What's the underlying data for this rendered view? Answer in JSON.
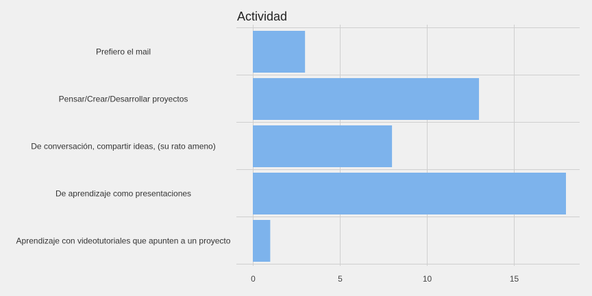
{
  "chart_data": {
    "type": "bar",
    "orientation": "horizontal",
    "title": "Actividad",
    "categories": [
      "Prefiero el mail",
      "Pensar/Crear/Desarrollar proyectos",
      "De conversación, compartir ideas, (su rato ameno)",
      "De aprendizaje como presentaciones",
      "Aprendizaje con videotutoriales que apunten a un proyecto"
    ],
    "values": [
      3,
      13,
      8,
      18,
      1
    ],
    "xlim": [
      0,
      18.5
    ],
    "xticks": [
      "0",
      "5",
      "10",
      "15"
    ],
    "xlabel": "",
    "ylabel": "",
    "grid": true,
    "colors": {
      "bar": "#7db3ec",
      "grid": "#cfcfcf",
      "background": "#f0f0f0"
    }
  }
}
